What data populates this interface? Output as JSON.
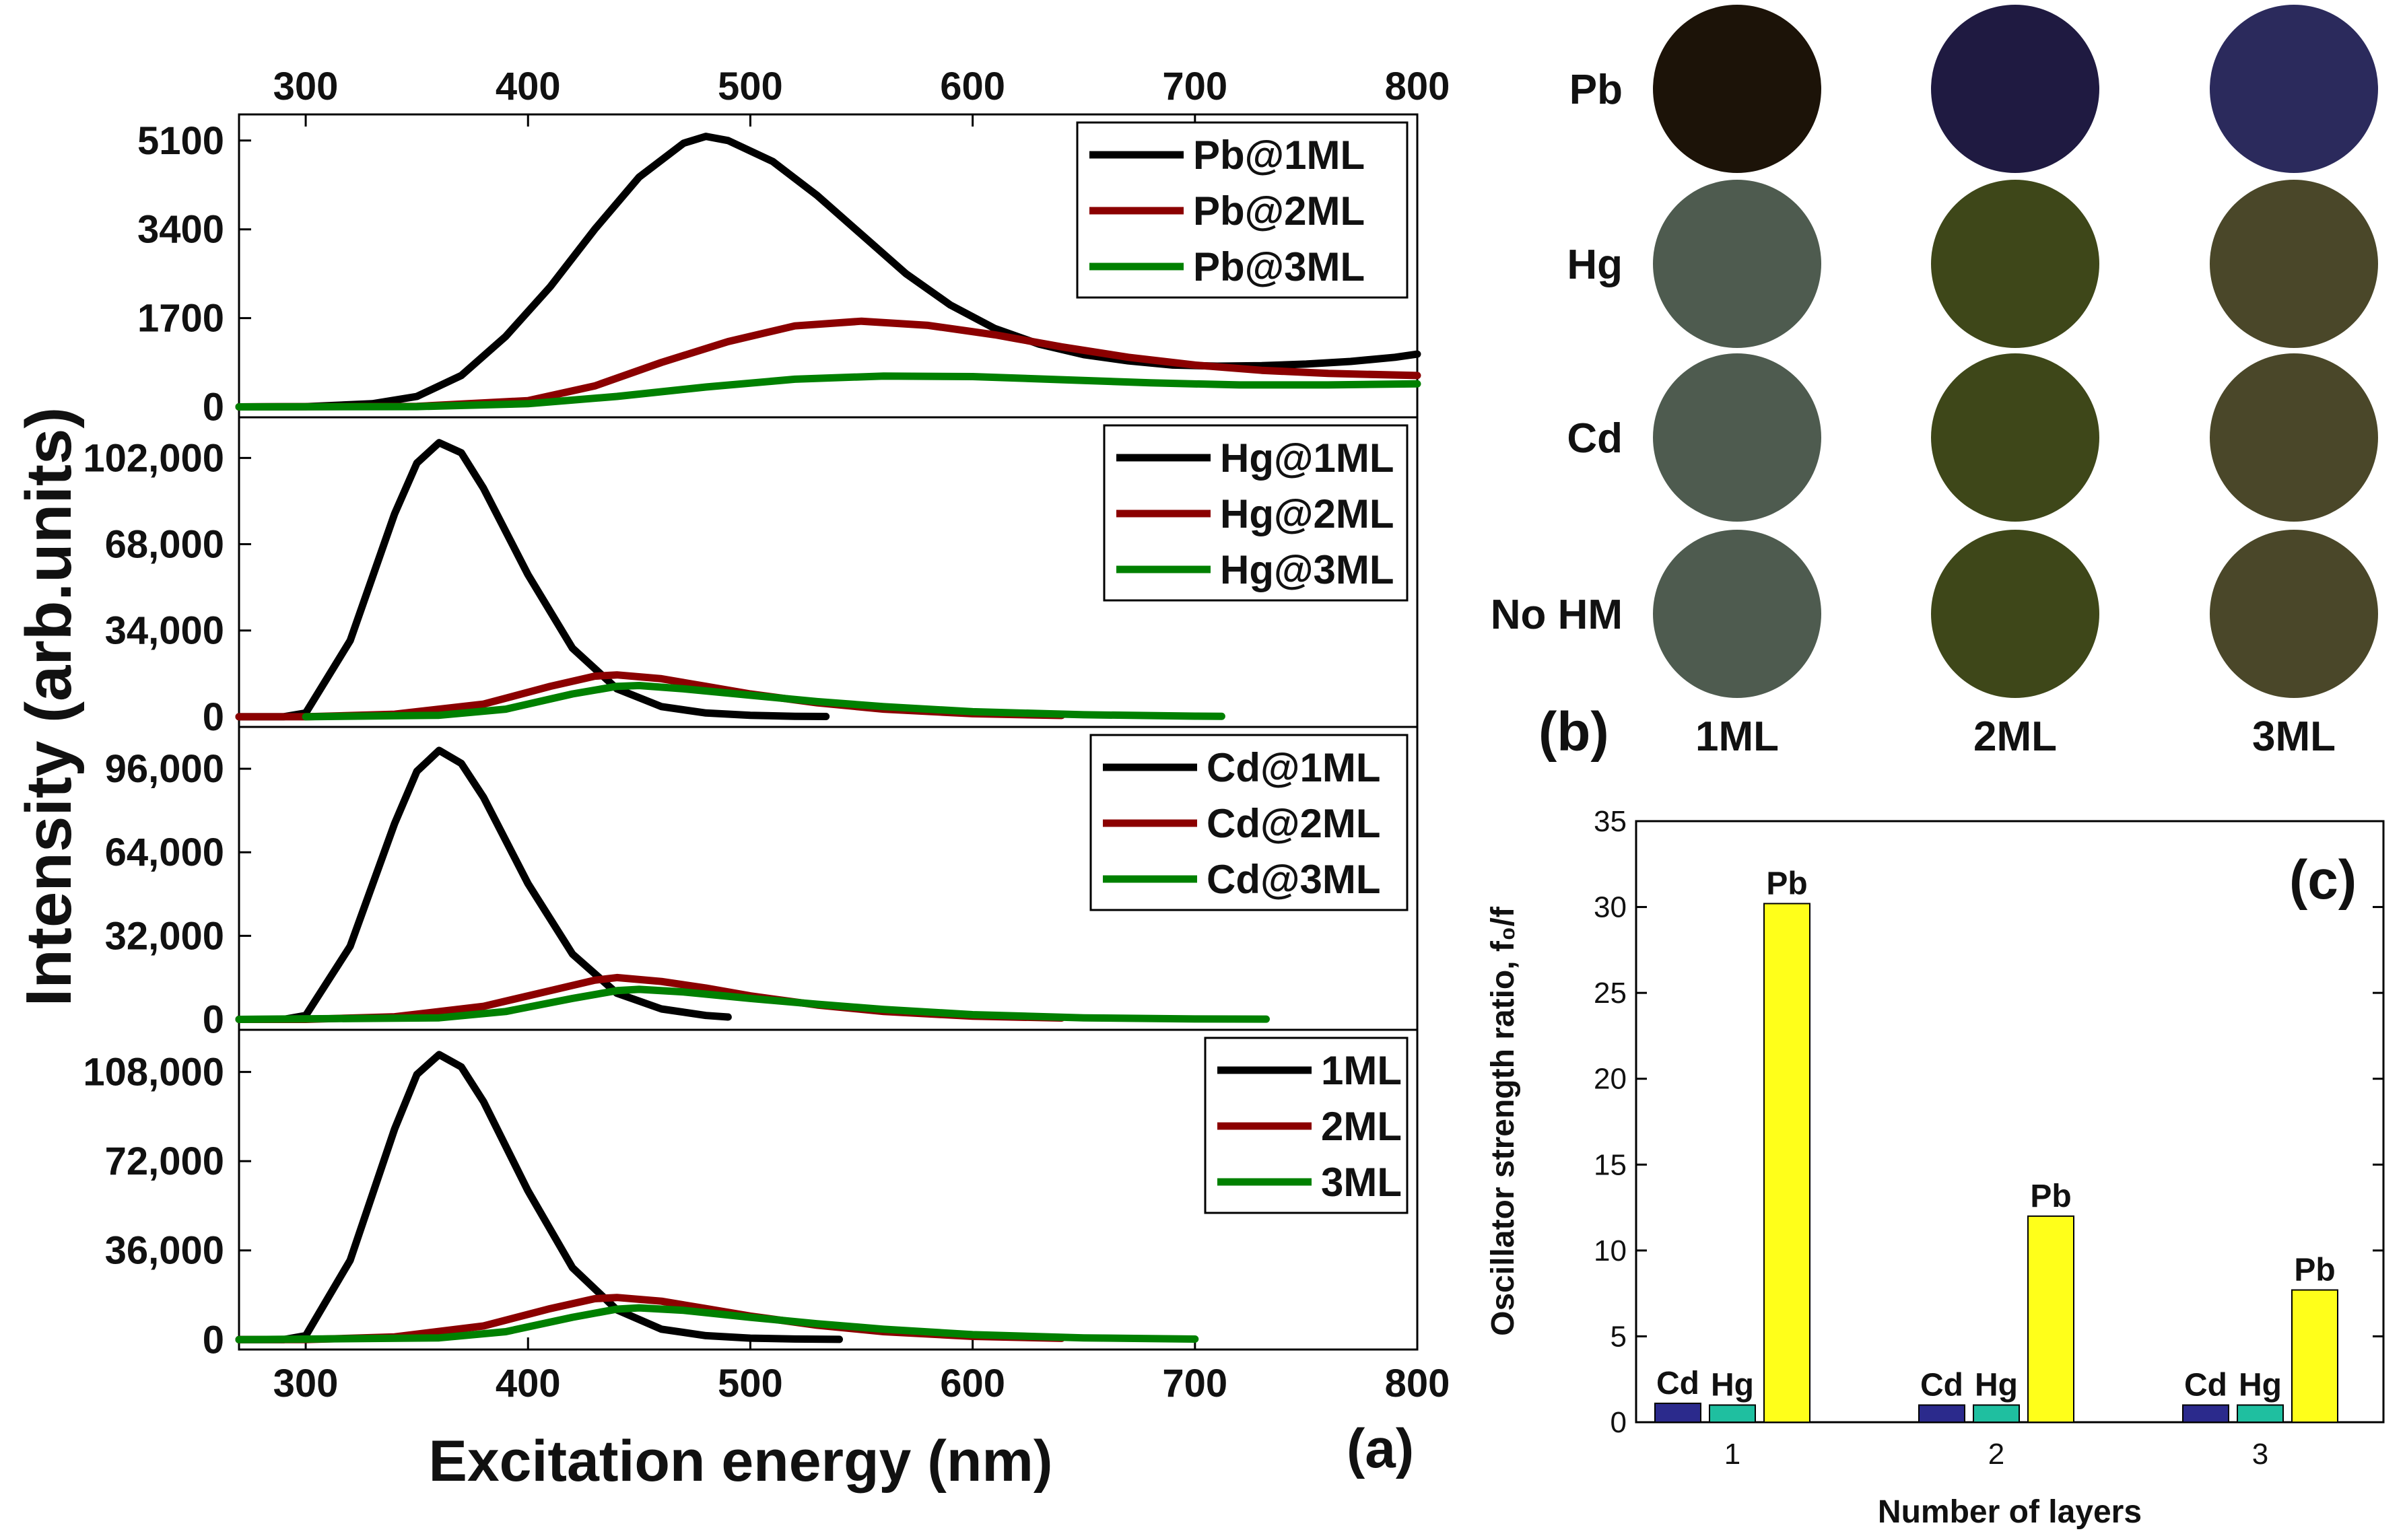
{
  "chart_data": [
    {
      "panel": "a",
      "panel_label": "(a)",
      "type": "line",
      "xlabel": "Excitation energy (nm)",
      "ylabel": "Intensity (arb.units)",
      "xlim": [
        270,
        800
      ],
      "xticks": [
        "300",
        "400",
        "500",
        "600",
        "700",
        "800"
      ],
      "subplots": [
        {
          "yticks": [
            "0",
            "1700",
            "3400",
            "5100"
          ],
          "ylim": [
            -200,
            5600
          ],
          "series": [
            {
              "name": "Pb@1ML",
              "color": "#000000",
              "x": [
                270,
                300,
                330,
                350,
                370,
                390,
                410,
                430,
                450,
                470,
                480,
                490,
                510,
                530,
                550,
                570,
                590,
                610,
                630,
                650,
                670,
                690,
                710,
                730,
                750,
                770,
                790,
                800
              ],
              "y": [
                0,
                5,
                60,
                200,
                600,
                1350,
                2300,
                3400,
                4400,
                5050,
                5180,
                5100,
                4700,
                4050,
                3300,
                2550,
                1950,
                1500,
                1200,
                1000,
                880,
                800,
                780,
                790,
                820,
                870,
                950,
                1010
              ]
            },
            {
              "name": "Pb@2ML",
              "color": "#8b0000",
              "x": [
                270,
                350,
                400,
                430,
                460,
                490,
                520,
                550,
                580,
                610,
                640,
                670,
                700,
                730,
                760,
                800
              ],
              "y": [
                0,
                10,
                120,
                400,
                850,
                1250,
                1550,
                1640,
                1560,
                1380,
                1150,
                950,
                800,
                700,
                640,
                600
              ]
            },
            {
              "name": "Pb@3ML",
              "color": "#008000",
              "x": [
                270,
                350,
                400,
                440,
                480,
                520,
                560,
                600,
                640,
                680,
                720,
                760,
                800
              ],
              "y": [
                0,
                5,
                60,
                200,
                380,
                530,
                590,
                580,
                520,
                460,
                420,
                420,
                440
              ]
            }
          ]
        },
        {
          "yticks": [
            "0",
            "34,000",
            "68,000",
            "102,000"
          ],
          "ylim": [
            -4000,
            118000
          ],
          "series": [
            {
              "name": "Hg@1ML",
              "color": "#000000",
              "x": [
                270,
                290,
                300,
                320,
                340,
                350,
                360,
                370,
                380,
                400,
                420,
                440,
                460,
                480,
                500,
                520,
                534
              ],
              "y": [
                0,
                0,
                1500,
                30000,
                80000,
                100000,
                108000,
                104000,
                90000,
                56000,
                27000,
                11000,
                4000,
                1500,
                600,
                200,
                100
              ]
            },
            {
              "name": "Hg@2ML",
              "color": "#8b0000",
              "x": [
                270,
                300,
                340,
                380,
                410,
                430,
                440,
                460,
                480,
                500,
                530,
                560,
                600,
                640
              ],
              "y": [
                0,
                0,
                1000,
                5000,
                12000,
                16000,
                16500,
                15000,
                12000,
                9000,
                5500,
                3000,
                1200,
                500
              ]
            },
            {
              "name": "Hg@3ML",
              "color": "#008000",
              "x": [
                300,
                360,
                390,
                420,
                440,
                450,
                470,
                500,
                530,
                560,
                600,
                650,
                700,
                712
              ],
              "y": [
                0,
                600,
                3000,
                9000,
                12000,
                12300,
                11000,
                8500,
                6000,
                4000,
                2000,
                800,
                250,
                200
              ]
            }
          ]
        },
        {
          "yticks": [
            "0",
            "32,000",
            "64,000",
            "96,000"
          ],
          "ylim": [
            -4000,
            112000
          ],
          "series": [
            {
              "name": "Cd@1ML",
              "color": "#000000",
              "x": [
                270,
                290,
                300,
                320,
                340,
                350,
                360,
                370,
                380,
                400,
                420,
                440,
                460,
                480,
                490
              ],
              "y": [
                0,
                0,
                1500,
                28000,
                75000,
                95000,
                103000,
                98000,
                85000,
                52000,
                25000,
                10000,
                4000,
                1500,
                900
              ]
            },
            {
              "name": "Cd@2ML",
              "color": "#8b0000",
              "x": [
                270,
                300,
                340,
                380,
                410,
                430,
                440,
                460,
                480,
                500,
                530,
                560,
                600,
                640
              ],
              "y": [
                0,
                0,
                1000,
                5000,
                11000,
                15000,
                16000,
                14500,
                12000,
                9000,
                5500,
                3000,
                1200,
                500
              ]
            },
            {
              "name": "Cd@3ML",
              "color": "#008000",
              "x": [
                270,
                360,
                390,
                420,
                440,
                450,
                470,
                500,
                530,
                560,
                600,
                650,
                700,
                732
              ],
              "y": [
                0,
                600,
                3000,
                8000,
                11000,
                11500,
                10500,
                8000,
                5800,
                3800,
                1800,
                600,
                150,
                100
              ]
            }
          ]
        },
        {
          "yticks": [
            "0",
            "36,000",
            "72,000",
            "108,000"
          ],
          "ylim": [
            -4000,
            125000
          ],
          "series": [
            {
              "name": "1ML",
              "color": "#000000",
              "x": [
                270,
                290,
                300,
                320,
                340,
                350,
                360,
                370,
                380,
                400,
                420,
                440,
                460,
                480,
                500,
                520,
                540
              ],
              "y": [
                0,
                0,
                1600,
                32000,
                85000,
                107000,
                115000,
                110000,
                96000,
                60000,
                29000,
                12000,
                4200,
                1600,
                600,
                250,
                100
              ]
            },
            {
              "name": "2ML",
              "color": "#8b0000",
              "x": [
                270,
                300,
                340,
                380,
                410,
                430,
                440,
                460,
                480,
                500,
                530,
                560,
                600,
                640
              ],
              "y": [
                0,
                0,
                1100,
                5500,
                12500,
                16500,
                17000,
                15500,
                12500,
                9500,
                5800,
                3200,
                1300,
                500
              ]
            },
            {
              "name": "3ML",
              "color": "#008000",
              "x": [
                270,
                360,
                390,
                420,
                440,
                450,
                470,
                500,
                530,
                560,
                600,
                650,
                700
              ],
              "y": [
                0,
                700,
                3200,
                9000,
                12300,
                12800,
                11800,
                9000,
                6400,
                4200,
                2000,
                700,
                200
              ]
            }
          ]
        }
      ]
    },
    {
      "panel": "b",
      "panel_label": "(b)",
      "type": "color swatches",
      "rows": [
        "Pb",
        "Hg",
        "Cd",
        "No HM"
      ],
      "columns": [
        "1ML",
        "2ML",
        "3ML"
      ],
      "colors": [
        [
          "#1c1308",
          "#1f1a41",
          "#2b2a5c"
        ],
        [
          "#4e5b4f",
          "#3e4719",
          "#4a4729"
        ],
        [
          "#4e5b4f",
          "#3e4719",
          "#4a4729"
        ],
        [
          "#4e5b4f",
          "#3e4719",
          "#4a4729"
        ]
      ]
    },
    {
      "panel": "c",
      "panel_label": "(c)",
      "type": "bar",
      "xlabel": "Number of layers",
      "ylabel": "Oscillator strength ratio, f₀/f",
      "categories": [
        "1",
        "2",
        "3"
      ],
      "ylim": [
        0,
        35
      ],
      "yticks": [
        "0",
        "5",
        "10",
        "15",
        "20",
        "25",
        "30",
        "35"
      ],
      "series": [
        {
          "name": "Cd",
          "color": "#2b2a8c",
          "values": [
            1.1,
            1.0,
            1.0
          ]
        },
        {
          "name": "Hg",
          "color": "#1fbfa0",
          "values": [
            1.0,
            1.0,
            1.0
          ]
        },
        {
          "name": "Pb",
          "color": "#ffff1a",
          "values": [
            30.2,
            12.0,
            7.7
          ]
        }
      ]
    }
  ]
}
